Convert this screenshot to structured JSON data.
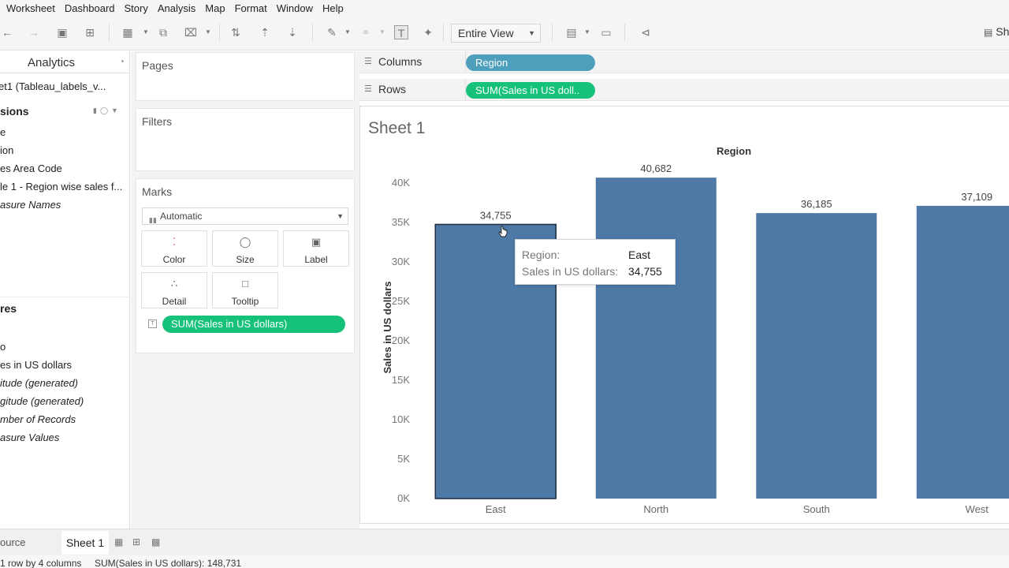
{
  "menu": [
    "Worksheet",
    "Dashboard",
    "Story",
    "Analysis",
    "Map",
    "Format",
    "Window",
    "Help"
  ],
  "toolbar": {
    "view_mode": "Entire View",
    "show_me": "Sh"
  },
  "data_pane": {
    "analytics_tab": "Analytics",
    "datasource": "et1 (Tableau_labels_v...",
    "dimensions_header": "sions",
    "dimensions": [
      {
        "label": "e",
        "italic": false
      },
      {
        "label": "ion",
        "italic": false
      },
      {
        "label": "es Area Code",
        "italic": false
      },
      {
        "label": "le 1 - Region wise sales f...",
        "italic": false
      },
      {
        "label": "asure Names",
        "italic": true
      }
    ],
    "measures_header": "res",
    "measures": [
      {
        "label": "o",
        "italic": false
      },
      {
        "label": "es in US dollars",
        "italic": false
      },
      {
        "label": "itude (generated)",
        "italic": true
      },
      {
        "label": "gitude (generated)",
        "italic": true
      },
      {
        "label": "mber of Records",
        "italic": true
      },
      {
        "label": "asure Values",
        "italic": true
      }
    ]
  },
  "cards": {
    "pages": "Pages",
    "filters": "Filters",
    "marks": "Marks",
    "mark_type": "Automatic",
    "buttons": [
      {
        "label": "Color",
        "icon": "color-dots-icon"
      },
      {
        "label": "Size",
        "icon": "size-icon"
      },
      {
        "label": "Label",
        "icon": "label-icon"
      },
      {
        "label": "Detail",
        "icon": "detail-icon"
      },
      {
        "label": "Tooltip",
        "icon": "tooltip-icon"
      }
    ],
    "marks_field": "SUM(Sales in US dollars)"
  },
  "shelves": {
    "columns_label": "Columns",
    "columns_pill": "Region",
    "rows_label": "Rows",
    "rows_pill": "SUM(Sales in US doll.."
  },
  "sheet": {
    "title": "Sheet 1"
  },
  "chart_data": {
    "type": "bar",
    "title": "Region",
    "xlabel": "",
    "ylabel": "Sales in US dollars",
    "categories": [
      "East",
      "North",
      "South",
      "West"
    ],
    "values": [
      34755,
      40682,
      36185,
      37109
    ],
    "data_labels": [
      "34,755",
      "40,682",
      "36,185",
      "37,109"
    ],
    "y_ticks": [
      0,
      5000,
      10000,
      15000,
      20000,
      25000,
      30000,
      35000,
      40000
    ],
    "y_tick_labels": [
      "0K",
      "5K",
      "10K",
      "15K",
      "20K",
      "25K",
      "30K",
      "35K",
      "40K"
    ],
    "ylim": [
      0,
      41000
    ],
    "bar_color": "#4e79a7",
    "grid": false
  },
  "tooltip": {
    "region_key": "Region:",
    "region_value": "East",
    "sales_key": "Sales in US dollars:",
    "sales_value": "34,755"
  },
  "tabs": {
    "source": "ource",
    "active_sheet": "Sheet 1"
  },
  "status": {
    "dimensions": "1 row by 4 columns",
    "sum": "SUM(Sales in US dollars): 148,731"
  }
}
